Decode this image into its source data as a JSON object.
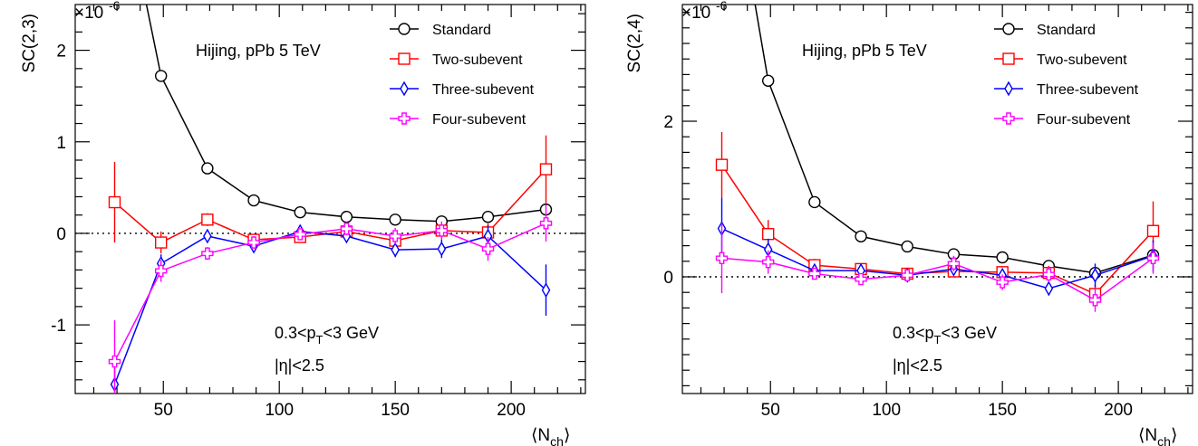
{
  "chart_data": [
    {
      "type": "line",
      "title": "",
      "xlabel": "⟨N",
      "xlabel_sub": "ch",
      "xlabel_close": "⟩",
      "ylabel": "SC(2,3)",
      "exponent_label": "×10",
      "exponent_power": "-6",
      "xlim": [
        12,
        232
      ],
      "ylim": [
        -1.75,
        2.5
      ],
      "xticks": [
        50,
        100,
        150,
        200
      ],
      "xtick_labels": [
        "50",
        "100",
        "150",
        "200"
      ],
      "yticks": [
        -1,
        0,
        1,
        2
      ],
      "ytick_labels": [
        "-1",
        "0",
        "1",
        "2"
      ],
      "zero_line": true,
      "annotations": {
        "generator": "Hijing, pPb 5 TeV",
        "pt_cut_a": "0.3<p",
        "pt_cut_sub": "T",
        "pt_cut_b": "<3 GeV",
        "eta_cut": "|η|<2.5"
      },
      "legend_position": "top-right",
      "series": [
        {
          "name": "Standard",
          "marker": "circle",
          "color": "#000000",
          "x": [
            29,
            49,
            69,
            89,
            109,
            129,
            150,
            170,
            190,
            215
          ],
          "y": [
            4.2,
            1.72,
            0.71,
            0.36,
            0.23,
            0.18,
            0.15,
            0.13,
            0.18,
            0.26
          ],
          "err": [
            0.2,
            0.05,
            0.03,
            0.02,
            0.02,
            0.02,
            0.02,
            0.03,
            0.04,
            0.06
          ]
        },
        {
          "name": "Two-subevent",
          "marker": "square",
          "color": "#ff0000",
          "x": [
            29,
            49,
            69,
            89,
            109,
            129,
            150,
            170,
            190,
            215
          ],
          "y": [
            0.34,
            -0.1,
            0.15,
            -0.07,
            -0.04,
            0.02,
            -0.08,
            0.03,
            0.01,
            0.7
          ],
          "err": [
            0.44,
            0.12,
            0.07,
            0.06,
            0.06,
            0.06,
            0.08,
            0.08,
            0.1,
            0.37
          ]
        },
        {
          "name": "Three-subevent",
          "marker": "diamond",
          "color": "#0000ff",
          "x": [
            29,
            49,
            69,
            89,
            109,
            129,
            150,
            170,
            190,
            215
          ],
          "y": [
            -1.65,
            -0.33,
            -0.03,
            -0.14,
            0.02,
            -0.03,
            -0.18,
            -0.17,
            -0.03,
            -0.62
          ],
          "err": [
            0.25,
            0.1,
            0.06,
            0.06,
            0.05,
            0.06,
            0.08,
            0.1,
            0.12,
            0.28
          ]
        },
        {
          "name": "Four-subevent",
          "marker": "cross",
          "color": "#ff00ff",
          "x": [
            29,
            49,
            69,
            89,
            109,
            129,
            150,
            170,
            190,
            215
          ],
          "y": [
            -1.4,
            -0.41,
            -0.22,
            -0.1,
            -0.01,
            0.05,
            -0.03,
            0.03,
            -0.17,
            0.11
          ],
          "err": [
            0.45,
            0.12,
            0.07,
            0.07,
            0.06,
            0.07,
            0.09,
            0.1,
            0.13,
            0.2
          ]
        }
      ]
    },
    {
      "type": "line",
      "title": "",
      "xlabel": "⟨N",
      "xlabel_sub": "ch",
      "xlabel_close": "⟩",
      "ylabel": "SC(2,4)",
      "exponent_label": "×10",
      "exponent_power": "-6",
      "xlim": [
        12,
        232
      ],
      "ylim": [
        -1.5,
        3.5
      ],
      "xticks": [
        50,
        100,
        150,
        200
      ],
      "xtick_labels": [
        "50",
        "100",
        "150",
        "200"
      ],
      "yticks": [
        0,
        2
      ],
      "ytick_labels": [
        "0",
        "2"
      ],
      "zero_line": true,
      "annotations": {
        "generator": "Hijing, pPb 5 TeV",
        "pt_cut_a": "0.3<p",
        "pt_cut_sub": "T",
        "pt_cut_b": "<3 GeV",
        "eta_cut": "|η|<2.5"
      },
      "legend_position": "top-right",
      "series": [
        {
          "name": "Standard",
          "marker": "circle",
          "color": "#000000",
          "x": [
            29,
            49,
            69,
            89,
            109,
            129,
            150,
            170,
            190,
            215
          ],
          "y": [
            6.0,
            2.52,
            0.96,
            0.52,
            0.39,
            0.29,
            0.25,
            0.14,
            0.05,
            0.28
          ],
          "err": [
            0.3,
            0.06,
            0.04,
            0.03,
            0.03,
            0.03,
            0.03,
            0.04,
            0.06,
            0.08
          ]
        },
        {
          "name": "Two-subevent",
          "marker": "square",
          "color": "#ff0000",
          "x": [
            29,
            49,
            69,
            89,
            109,
            129,
            150,
            170,
            190,
            215
          ],
          "y": [
            1.44,
            0.55,
            0.15,
            0.1,
            0.04,
            0.07,
            0.06,
            0.05,
            -0.22,
            0.59
          ],
          "err": [
            0.42,
            0.18,
            0.08,
            0.07,
            0.06,
            0.07,
            0.08,
            0.09,
            0.12,
            0.38
          ]
        },
        {
          "name": "Three-subevent",
          "marker": "diamond",
          "color": "#0000ff",
          "x": [
            29,
            49,
            69,
            89,
            109,
            129,
            150,
            170,
            190,
            215
          ],
          "y": [
            0.62,
            0.35,
            0.08,
            0.08,
            0.02,
            0.1,
            0.02,
            -0.15,
            0.02,
            0.27
          ],
          "err": [
            0.4,
            0.14,
            0.07,
            0.06,
            0.06,
            0.07,
            0.08,
            0.09,
            0.15,
            0.2
          ]
        },
        {
          "name": "Four-subevent",
          "marker": "cross",
          "color": "#ff00ff",
          "x": [
            29,
            49,
            69,
            89,
            109,
            129,
            150,
            170,
            190,
            215
          ],
          "y": [
            0.24,
            0.19,
            0.04,
            -0.03,
            0.02,
            0.17,
            -0.07,
            0.03,
            -0.3,
            0.24
          ],
          "err": [
            0.45,
            0.15,
            0.07,
            0.07,
            0.06,
            0.1,
            0.1,
            0.1,
            0.15,
            0.2
          ]
        }
      ]
    }
  ]
}
